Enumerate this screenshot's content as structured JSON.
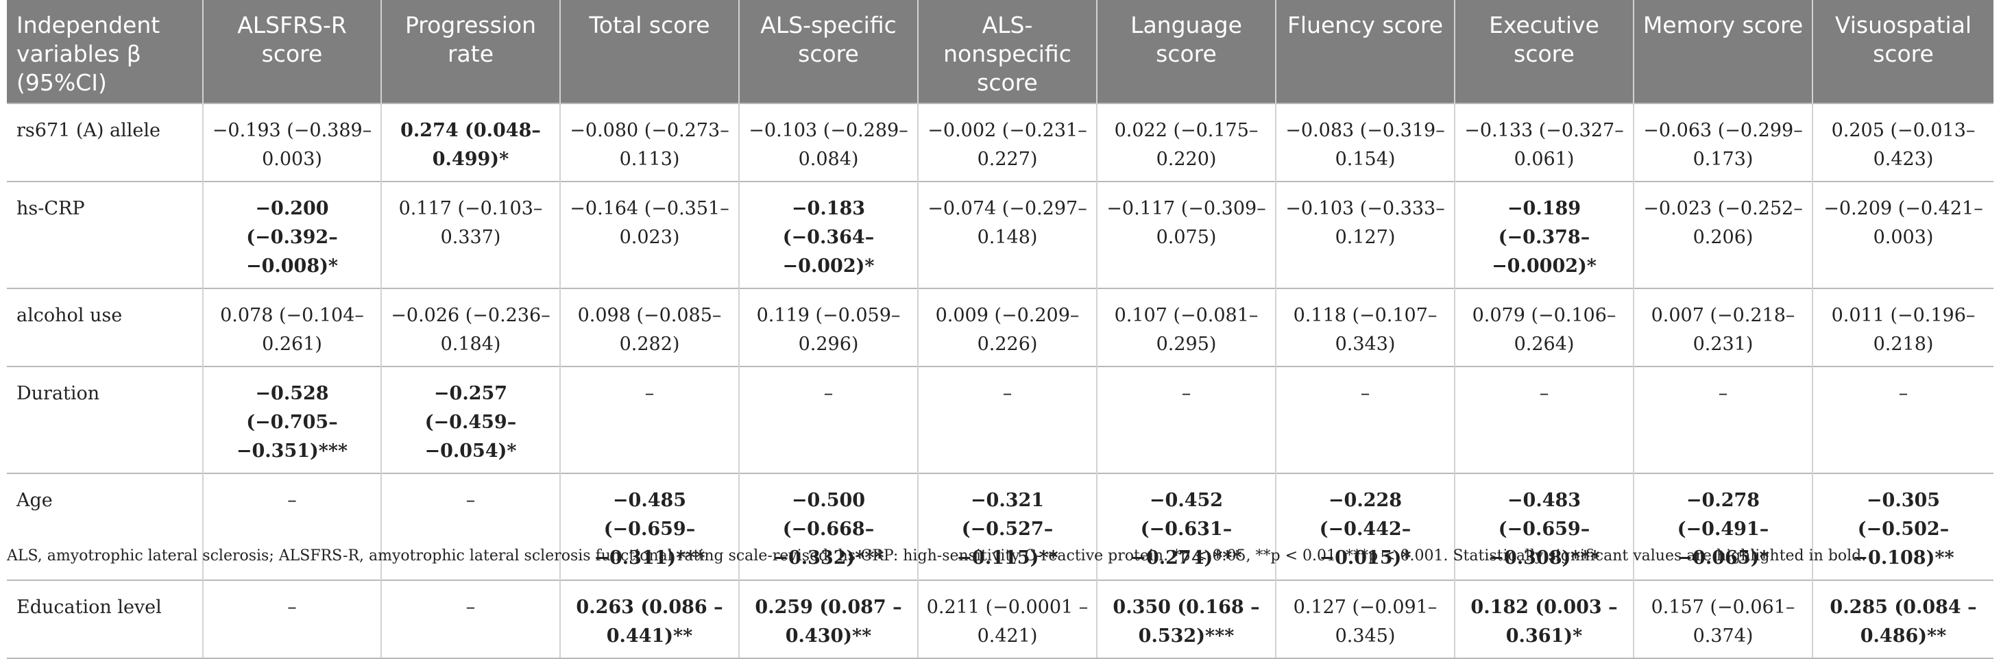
{
  "table": {
    "headers": [
      "Independent variables β (95%CI)",
      "ALSFRS-R score",
      "Progression rate",
      "Total score",
      "ALS-specific score",
      "ALS-nonspecific score",
      "Language score",
      "Fluency score",
      "Executive score",
      "Memory score",
      "Visuospatial score"
    ],
    "rows": [
      {
        "label": "rs671 (A) allele",
        "cells": [
          {
            "text": "−0.193 (−0.389–0.003)",
            "bold": false
          },
          {
            "text": "0.274 (0.048–0.499)*",
            "bold": true
          },
          {
            "text": "−0.080 (−0.273–0.113)",
            "bold": false
          },
          {
            "text": "−0.103 (−0.289–0.084)",
            "bold": false
          },
          {
            "text": "−0.002 (−0.231–0.227)",
            "bold": false
          },
          {
            "text": "0.022 (−0.175–0.220)",
            "bold": false
          },
          {
            "text": "−0.083 (−0.319–0.154)",
            "bold": false
          },
          {
            "text": "−0.133 (−0.327–0.061)",
            "bold": false
          },
          {
            "text": "−0.063 (−0.299–0.173)",
            "bold": false
          },
          {
            "text": "0.205 (−0.013–0.423)",
            "bold": false
          }
        ]
      },
      {
        "label": "hs-CRP",
        "cells": [
          {
            "text": "−0.200 (−0.392–−0.008)*",
            "bold": true
          },
          {
            "text": "0.117 (−0.103–0.337)",
            "bold": false
          },
          {
            "text": "−0.164 (−0.351–0.023)",
            "bold": false
          },
          {
            "text": "−0.183 (−0.364–−0.002)*",
            "bold": true
          },
          {
            "text": "−0.074 (−0.297–0.148)",
            "bold": false
          },
          {
            "text": "−0.117 (−0.309–0.075)",
            "bold": false
          },
          {
            "text": "−0.103 (−0.333–0.127)",
            "bold": false
          },
          {
            "text": "−0.189 (−0.378–−0.0002)*",
            "bold": true
          },
          {
            "text": "−0.023 (−0.252–0.206)",
            "bold": false
          },
          {
            "text": "−0.209 (−0.421–0.003)",
            "bold": false
          }
        ]
      },
      {
        "label": "alcohol use",
        "cells": [
          {
            "text": "0.078 (−0.104–0.261)",
            "bold": false
          },
          {
            "text": "−0.026 (−0.236–0.184)",
            "bold": false
          },
          {
            "text": "0.098 (−0.085–0.282)",
            "bold": false
          },
          {
            "text": "0.119 (−0.059–0.296)",
            "bold": false
          },
          {
            "text": "0.009 (−0.209–0.226)",
            "bold": false
          },
          {
            "text": "0.107 (−0.081–0.295)",
            "bold": false
          },
          {
            "text": "0.118 (−0.107–0.343)",
            "bold": false
          },
          {
            "text": "0.079 (−0.106–0.264)",
            "bold": false
          },
          {
            "text": "0.007 (−0.218–0.231)",
            "bold": false
          },
          {
            "text": "0.011 (−0.196–0.218)",
            "bold": false
          }
        ]
      },
      {
        "label": "Duration",
        "cells": [
          {
            "text": "−0.528 (−0.705–−0.351)***",
            "bold": true
          },
          {
            "text": "−0.257 (−0.459–−0.054)*",
            "bold": true
          },
          {
            "text": "–",
            "bold": false
          },
          {
            "text": "–",
            "bold": false
          },
          {
            "text": "–",
            "bold": false
          },
          {
            "text": "–",
            "bold": false
          },
          {
            "text": "–",
            "bold": false
          },
          {
            "text": "–",
            "bold": false
          },
          {
            "text": "–",
            "bold": false
          },
          {
            "text": "–",
            "bold": false
          }
        ]
      },
      {
        "label": "Age",
        "cells": [
          {
            "text": "–",
            "bold": false
          },
          {
            "text": "–",
            "bold": false
          },
          {
            "text": "−0.485 (−0.659–−0.311)***",
            "bold": true
          },
          {
            "text": "−0.500 (−0.668–−0.332)***",
            "bold": true
          },
          {
            "text": "−0.321 (−0.527–−0.115)**",
            "bold": true
          },
          {
            "text": "−0.452 (−0.631–−0.274)***",
            "bold": true
          },
          {
            "text": "−0.228 (−0.442–−0.015)*",
            "bold": true
          },
          {
            "text": "−0.483 (−0.659–−0.308)***",
            "bold": true
          },
          {
            "text": "−0.278 (−0.491–−0.065)*",
            "bold": true
          },
          {
            "text": "−0.305 (−0.502–−0.108)**",
            "bold": true
          }
        ]
      },
      {
        "label": "Education level",
        "cells": [
          {
            "text": "–",
            "bold": false
          },
          {
            "text": "–",
            "bold": false
          },
          {
            "text": "0.263 (0.086 –0.441)**",
            "bold": true
          },
          {
            "text": "0.259 (0.087 –0.430)**",
            "bold": true
          },
          {
            "text": "0.211 (−0.0001 –0.421)",
            "bold": false
          },
          {
            "text": "0.350 (0.168 –0.532)***",
            "bold": true
          },
          {
            "text": "0.127 (−0.091–0.345)",
            "bold": false
          },
          {
            "text": "0.182 (0.003 –0.361)*",
            "bold": true
          },
          {
            "text": "0.157 (−0.061–0.374)",
            "bold": false
          },
          {
            "text": "0.285 (0.084 –0.486)**",
            "bold": true
          }
        ]
      }
    ]
  },
  "footnote": "ALS, amyotrophic lateral sclerosis; ALSFRS-R, amyotrophic lateral sclerosis functional rating scale-revised; hs-CRP: high-sensitivity C-reactive protein. *p < 0.05, **p < 0.01, ***p < 0.001. Statistically significant values are highlighted in bold."
}
